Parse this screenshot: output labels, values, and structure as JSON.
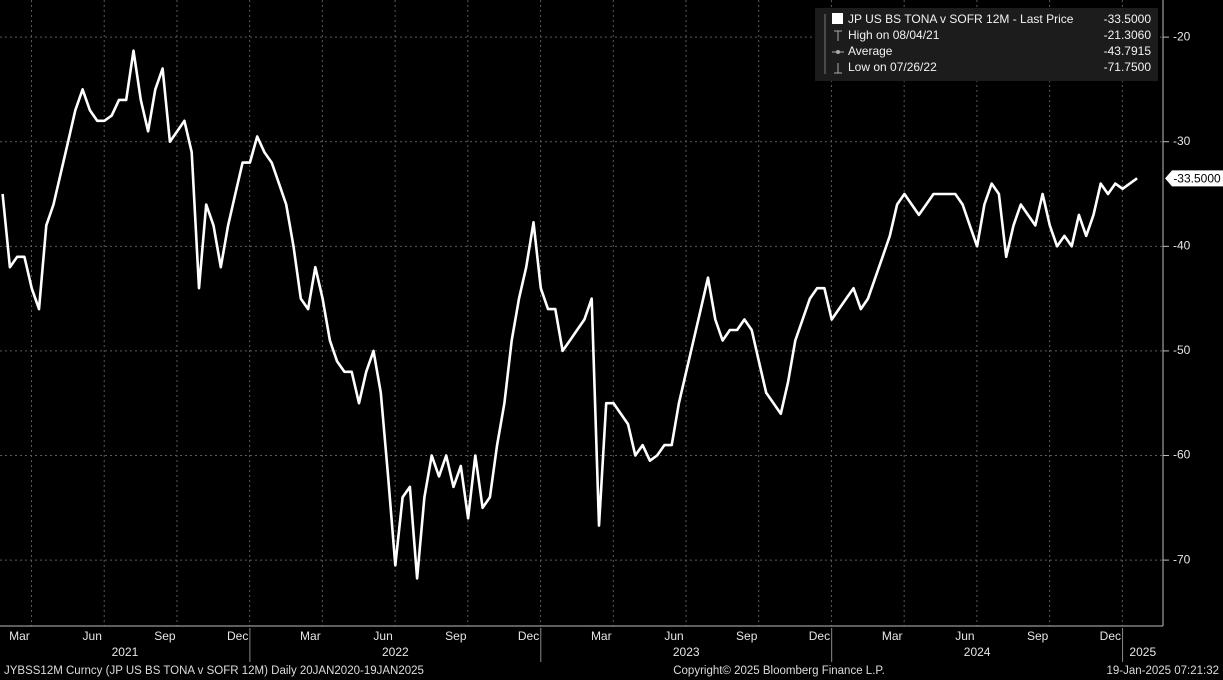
{
  "chart_data": {
    "type": "line",
    "series": [
      {
        "name": "JP US BS TONA v SOFR 12M - Last Price",
        "color": "#ffffff",
        "last_value": {
          "value": -33.5,
          "label": "-33.5000"
        },
        "values": [
          -35,
          -42,
          -41,
          -41,
          -44,
          -46,
          -38,
          -36,
          -33,
          -30,
          -27,
          -25,
          -27,
          -28,
          -28,
          -27.5,
          -26,
          -26,
          -21.3,
          -26,
          -29,
          -25,
          -23,
          -30,
          -29,
          -28,
          -31,
          -44,
          -36,
          -38,
          -42,
          -38,
          -35,
          -32,
          -32,
          -29.5,
          -31,
          -32,
          -34,
          -36,
          -40,
          -45,
          -46,
          -42,
          -45,
          -49,
          -51,
          -52,
          -52,
          -55,
          -52,
          -50,
          -54,
          -62,
          -70.5,
          -64,
          -63,
          -71.75,
          -64,
          -60,
          -62,
          -60,
          -63,
          -61,
          -66,
          -60,
          -65,
          -64,
          -59,
          -55,
          -49,
          -45,
          -42,
          -37.7,
          -44,
          -46,
          -46,
          -50,
          -49,
          -48,
          -47,
          -45,
          -66.7,
          -55,
          -55,
          -56,
          -57,
          -60,
          -59,
          -60.5,
          -60,
          -59,
          -59,
          -55,
          -52,
          -49,
          -46,
          -43,
          -47,
          -49,
          -48,
          -48,
          -47,
          -48,
          -51,
          -54,
          -55,
          -56,
          -53,
          -49,
          -47,
          -45,
          -44,
          -44,
          -47,
          -46,
          -45,
          -44,
          -46,
          -45,
          -43,
          -41,
          -39,
          -36,
          -35,
          -36,
          -37,
          -36,
          -35,
          -35,
          -35,
          -35,
          -36,
          -38,
          -40,
          -36,
          -34,
          -35,
          -41,
          -38,
          -36,
          -37,
          -38,
          -35,
          -38,
          -40,
          -39,
          -40,
          -37,
          -39,
          -37,
          -34,
          -35,
          -34,
          -34.5,
          -34,
          -33.5
        ]
      }
    ],
    "x": [
      2021.15,
      2021.175,
      2021.2,
      2021.225,
      2021.25,
      2021.275,
      2021.3,
      2021.325,
      2021.35,
      2021.375,
      2021.4,
      2021.425,
      2021.45,
      2021.475,
      2021.5,
      2021.525,
      2021.55,
      2021.575,
      2021.6,
      2021.625,
      2021.65,
      2021.675,
      2021.7,
      2021.725,
      2021.75,
      2021.775,
      2021.8,
      2021.825,
      2021.85,
      2021.875,
      2021.9,
      2021.925,
      2021.95,
      2021.975,
      2022.0,
      2022.025,
      2022.05,
      2022.075,
      2022.1,
      2022.125,
      2022.15,
      2022.175,
      2022.2,
      2022.225,
      2022.25,
      2022.275,
      2022.3,
      2022.325,
      2022.35,
      2022.375,
      2022.4,
      2022.425,
      2022.45,
      2022.475,
      2022.5,
      2022.525,
      2022.55,
      2022.575,
      2022.6,
      2022.625,
      2022.65,
      2022.675,
      2022.7,
      2022.725,
      2022.75,
      2022.775,
      2022.8,
      2022.825,
      2022.85,
      2022.875,
      2022.9,
      2022.925,
      2022.95,
      2022.975,
      2023.0,
      2023.025,
      2023.05,
      2023.075,
      2023.1,
      2023.125,
      2023.15,
      2023.175,
      2023.2,
      2023.225,
      2023.25,
      2023.275,
      2023.3,
      2023.325,
      2023.35,
      2023.375,
      2023.4,
      2023.425,
      2023.45,
      2023.475,
      2023.5,
      2023.525,
      2023.55,
      2023.575,
      2023.6,
      2023.625,
      2023.65,
      2023.675,
      2023.7,
      2023.725,
      2023.75,
      2023.775,
      2023.8,
      2023.825,
      2023.85,
      2023.875,
      2023.9,
      2023.925,
      2023.95,
      2023.975,
      2024.0,
      2024.025,
      2024.05,
      2024.075,
      2024.1,
      2024.125,
      2024.15,
      2024.175,
      2024.2,
      2024.225,
      2024.25,
      2024.275,
      2024.3,
      2024.325,
      2024.35,
      2024.375,
      2024.4,
      2024.425,
      2024.45,
      2024.475,
      2024.5,
      2024.525,
      2024.55,
      2024.575,
      2024.6,
      2024.625,
      2024.65,
      2024.675,
      2024.7,
      2024.725,
      2024.75,
      2024.775,
      2024.8,
      2024.825,
      2024.85,
      2024.875,
      2024.9,
      2024.925,
      2024.95,
      2024.975,
      2025.0,
      2025.025,
      2025.05
    ],
    "xlim": [
      2021.141,
      2025.139
    ],
    "xticks": [
      {
        "value": 2021.208,
        "label": "Mar"
      },
      {
        "value": 2021.458,
        "label": "Jun"
      },
      {
        "value": 2021.708,
        "label": "Sep"
      },
      {
        "value": 2021.958,
        "label": "Dec"
      },
      {
        "value": 2022.208,
        "label": "Mar"
      },
      {
        "value": 2022.458,
        "label": "Jun"
      },
      {
        "value": 2022.708,
        "label": "Sep"
      },
      {
        "value": 2022.958,
        "label": "Dec"
      },
      {
        "value": 2023.208,
        "label": "Mar"
      },
      {
        "value": 2023.458,
        "label": "Jun"
      },
      {
        "value": 2023.708,
        "label": "Sep"
      },
      {
        "value": 2023.958,
        "label": "Dec"
      },
      {
        "value": 2024.208,
        "label": "Mar"
      },
      {
        "value": 2024.458,
        "label": "Jun"
      },
      {
        "value": 2024.708,
        "label": "Sep"
      },
      {
        "value": 2024.958,
        "label": "Dec"
      }
    ],
    "year_ticks": [
      2021,
      2022,
      2023,
      2024,
      2025
    ],
    "ylim": [
      -76.3,
      -16.45
    ],
    "yticks": [
      -20,
      -30,
      -40,
      -50,
      -60,
      -70
    ],
    "grid": true,
    "legend": {
      "stats": [
        {
          "label": "High on 08/04/21",
          "value": {
            "value": -21.306,
            "label": "-21.3060"
          }
        },
        {
          "label": "Average",
          "value": {
            "value": -43.7915,
            "label": "-43.7915"
          }
        },
        {
          "label": "Low on 07/26/22",
          "value": {
            "value": -71.75,
            "label": "-71.7500"
          }
        }
      ]
    },
    "footer": {
      "left": "JYBSS12M Curncy (JP US BS TONA v SOFR 12M)  Daily 20JAN2020-19JAN2025",
      "center": "Copyright© 2025 Bloomberg Finance L.P.",
      "right": "19-Jan-2025 07:21:32"
    }
  }
}
